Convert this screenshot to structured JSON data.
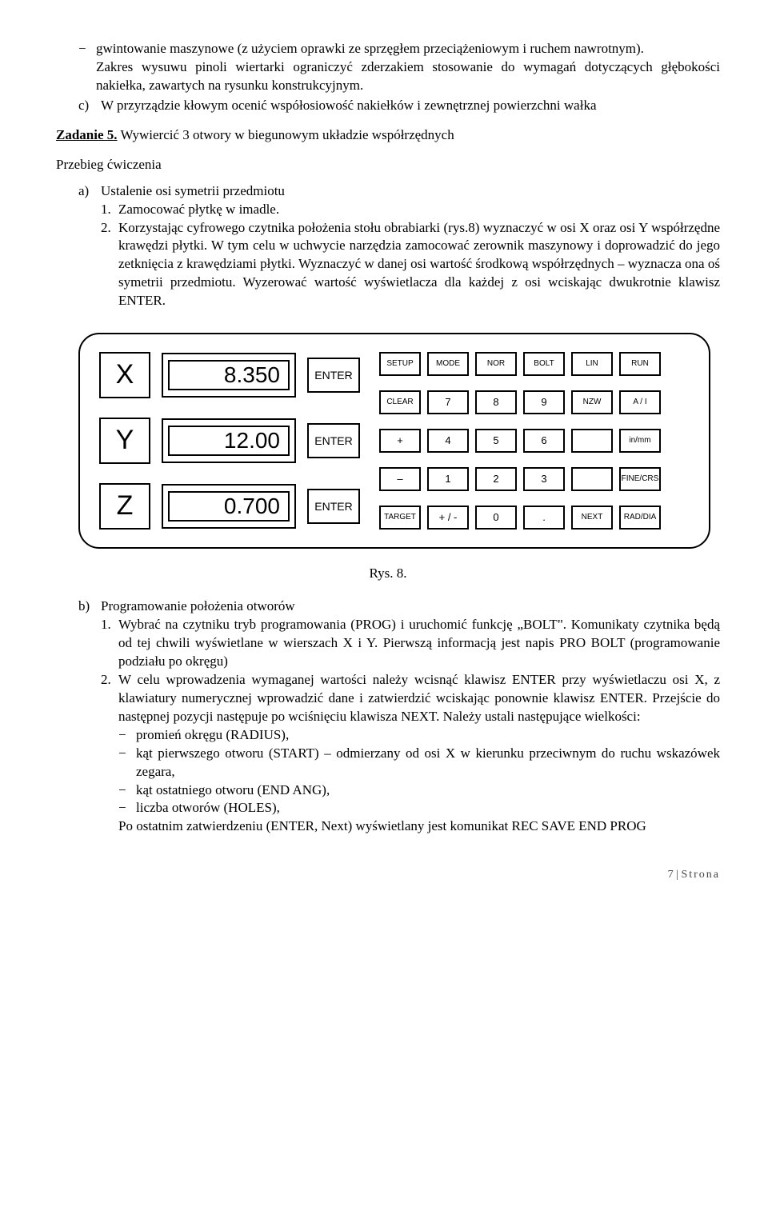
{
  "top_dash": "gwintowanie maszynowe (z użyciem oprawki ze sprzęgłem przeciążeniowym i ruchem nawrotnym).",
  "top_para": "Zakres wysuwu pinoli wiertarki ograniczyć zderzakiem stosowanie do wymagań dotyczących głębokości nakiełka, zawartych na rysunku konstrukcyjnym.",
  "item_c": "W przyrządzie kłowym ocenić współosiowość nakiełków i zewnętrznej powierzchni wałka",
  "task5_label": "Zadanie 5.",
  "task5_text": " Wywiercić 3 otwory w biegunowym układzie współrzędnych",
  "przebieg": "Przebieg ćwiczenia",
  "item_a": "Ustalenie osi symetrii przedmiotu",
  "a1": "Zamocować płytkę w imadle.",
  "a2": "Korzystając cyfrowego czytnika położenia stołu obrabiarki (rys.8) wyznaczyć w osi X oraz osi Y współrzędne krawędzi płytki. W tym celu w uchwycie narzędzia zamocować zerownik maszynowy i doprowadzić do jego zetknięcia z krawędziami płytki. Wyznaczyć w danej osi wartość środkową współrzędnych – wyznacza ona oś symetrii przedmiotu. Wyzerować wartość wyświetlacza dla każdej z osi wciskając dwukrotnie klawisz ENTER.",
  "panel": {
    "axes": [
      "X",
      "Y",
      "Z"
    ],
    "values": [
      "8.350",
      "12.00",
      "0.700"
    ],
    "enter": "ENTER",
    "rows": [
      [
        "SETUP",
        "MODE",
        "NOR",
        "BOLT",
        "LIN",
        "RUN"
      ],
      [
        "CLEAR",
        "7",
        "8",
        "9",
        "NZW",
        "A / I"
      ],
      [
        "+",
        "4",
        "5",
        "6",
        "",
        "in/mm"
      ],
      [
        "–",
        "1",
        "2",
        "3",
        "",
        "FINE/CRS"
      ],
      [
        "TARGET",
        "+ / -",
        "0",
        ".",
        "NEXT",
        "RAD/DIA"
      ]
    ],
    "small_idx": {
      "0": [
        0,
        1,
        2,
        3,
        4,
        5
      ],
      "1": [
        0,
        4,
        5
      ],
      "2": [
        5
      ],
      "3": [
        5
      ],
      "4": [
        0,
        4,
        5
      ]
    }
  },
  "fig": "Rys. 8.",
  "item_b": "Programowanie położenia otworów",
  "b1": "Wybrać na czytniku tryb programowania (PROG) i uruchomić funkcję „BOLT\". Komunikaty czytnika będą od tej chwili wyświetlane w wierszach X i Y. Pierwszą informacją jest napis PRO BOLT (programowanie podziału po okręgu)",
  "b2": "W celu wprowadzenia wymaganej wartości należy wcisnąć klawisz ENTER przy wyświetlaczu osi X, z klawiatury numerycznej wprowadzić dane i zatwierdzić wciskając ponownie klawisz ENTER. Przejście do następnej pozycji następuje po wciśnięciu klawisza NEXT. Należy ustali następujące wielkości:",
  "b2_d1": "promień okręgu (RADIUS),",
  "b2_d2": "kąt pierwszego otworu (START) – odmierzany od osi X w kierunku przeciwnym do ruchu wskazówek zegara,",
  "b2_d3": "kąt ostatniego otworu (END ANG),",
  "b2_d4": "liczba otworów (HOLES),",
  "b2_tail": "Po ostatnim zatwierdzeniu (ENTER, Next) wyświetlany jest komunikat REC SAVE END PROG",
  "footer_page": "7 | ",
  "footer_label": "Strona"
}
